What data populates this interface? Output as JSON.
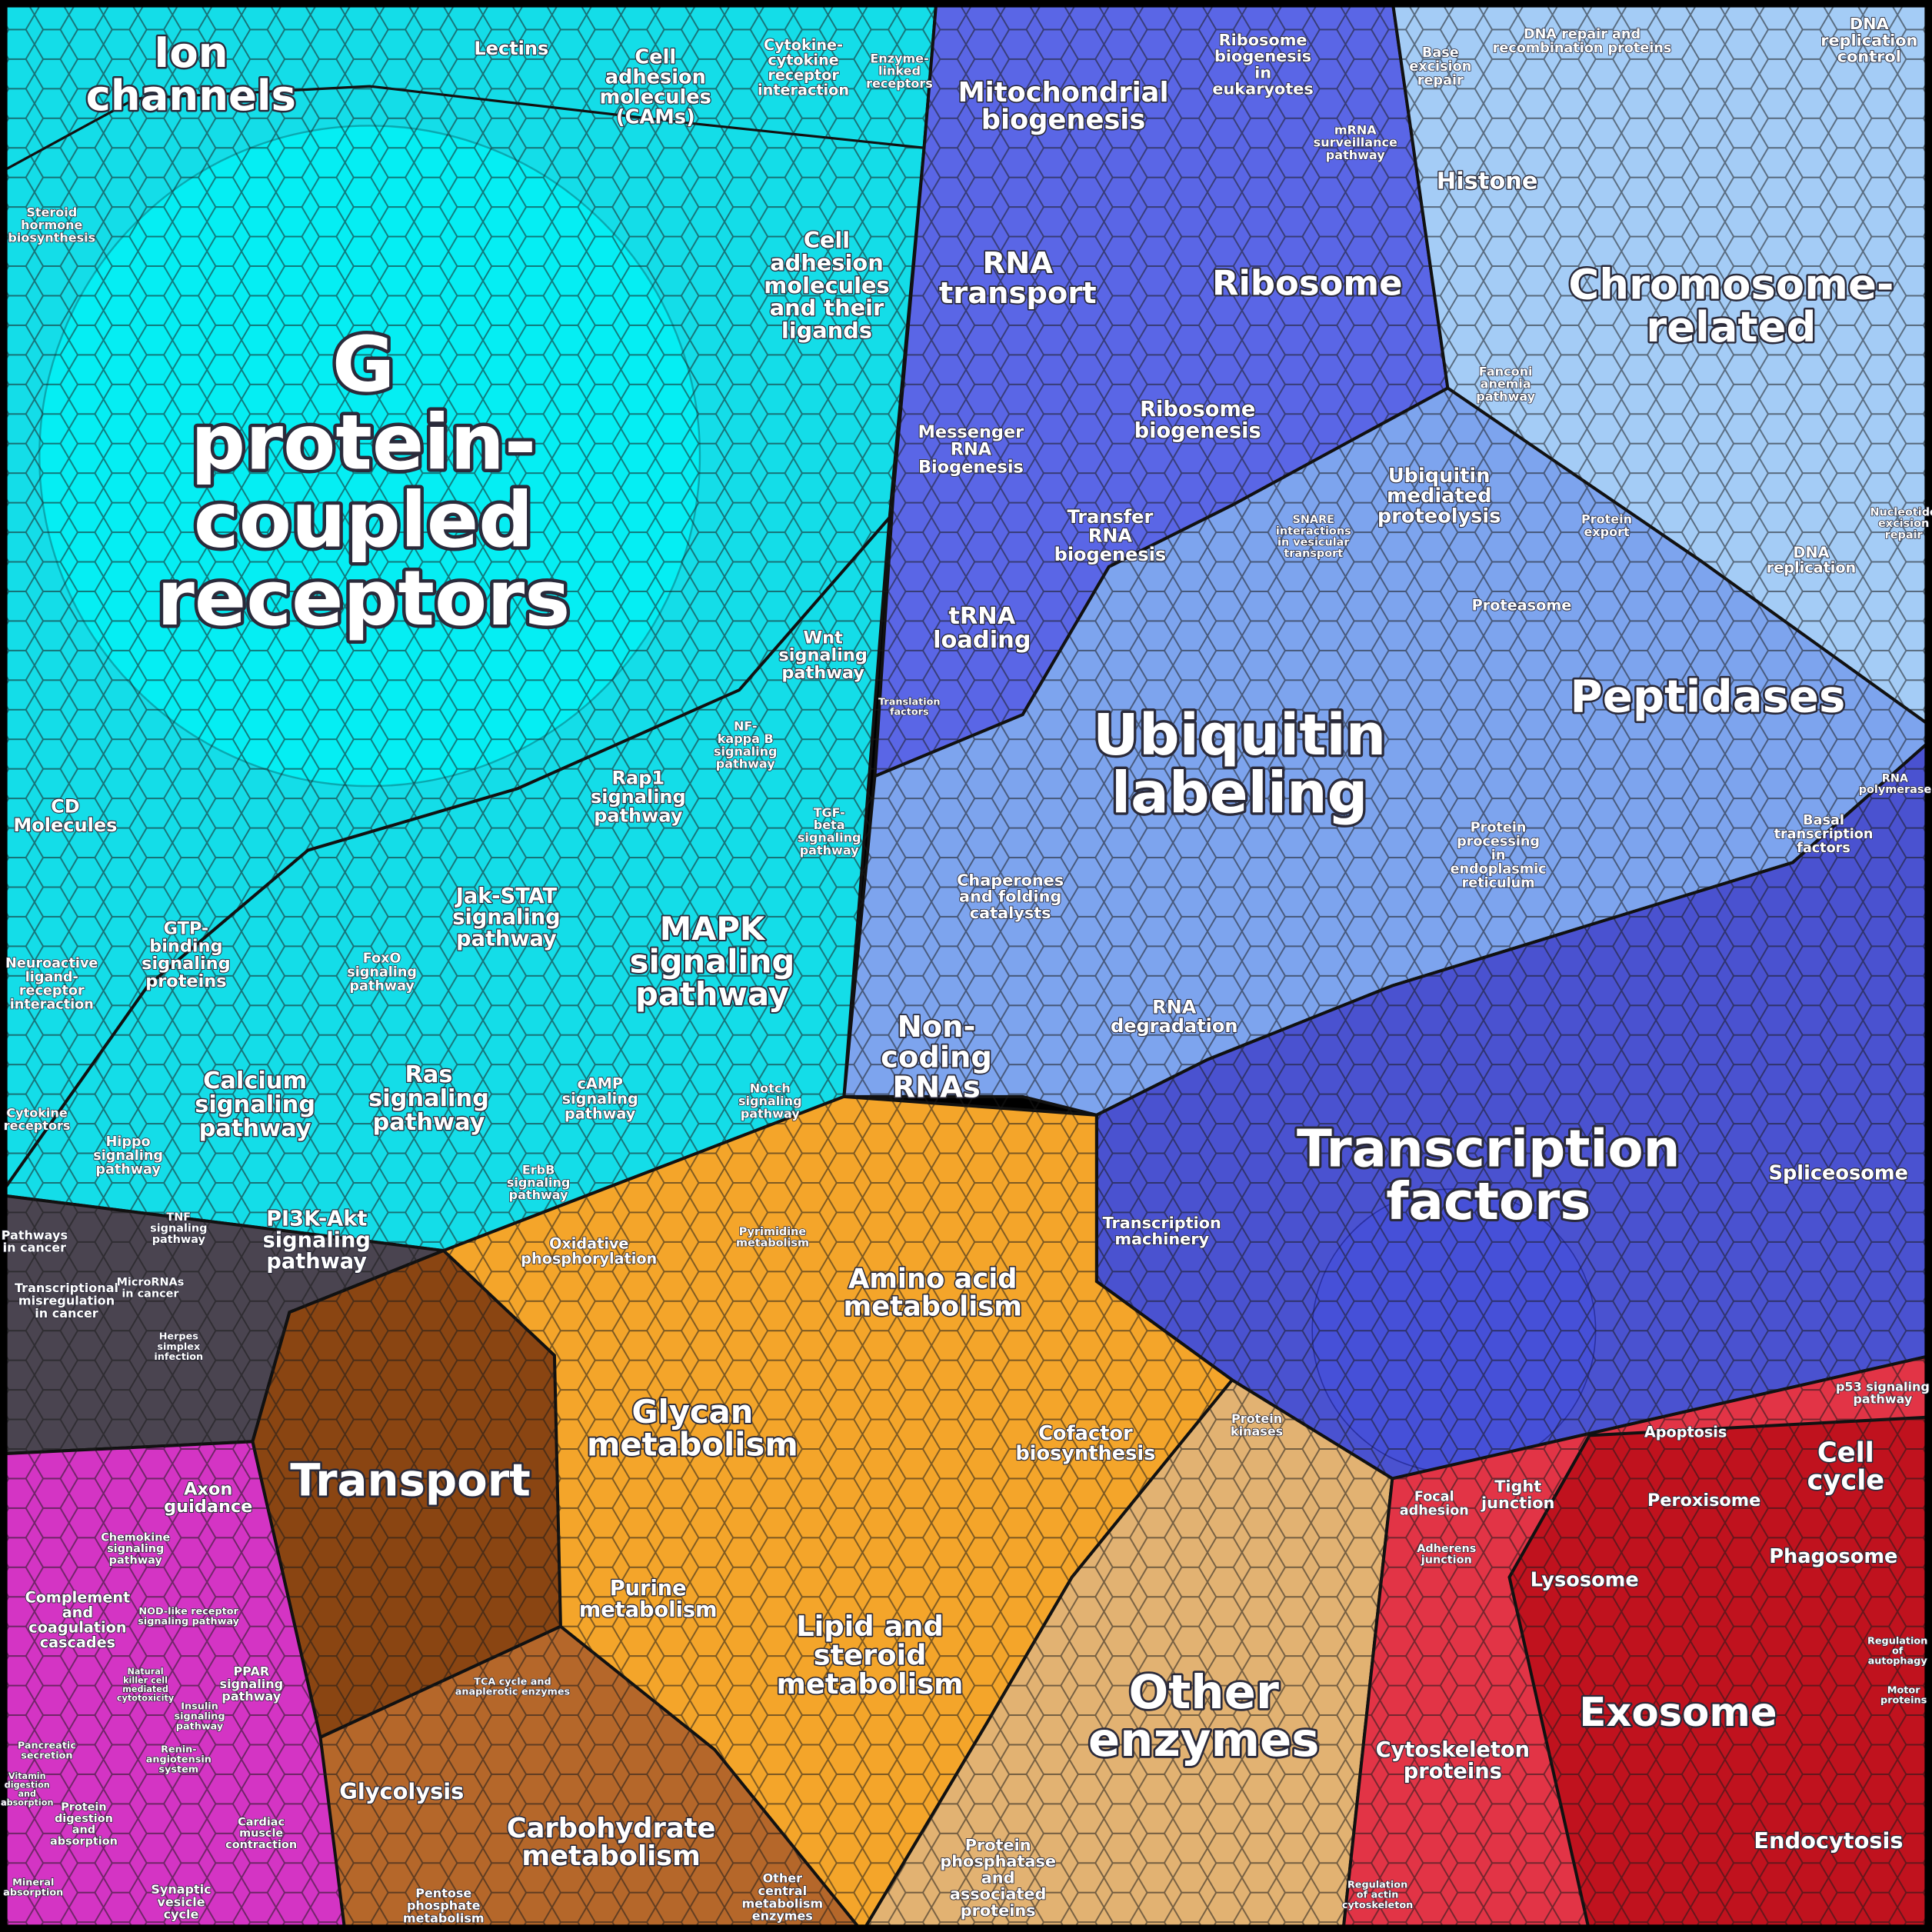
{
  "labels": [
    {
      "lines": [
        "G",
        "protein-",
        "coupled",
        "receptors"
      ]
    },
    {
      "lines": [
        "Ion",
        "channels"
      ]
    },
    {
      "lines": [
        "Lectins"
      ]
    },
    {
      "lines": [
        "Cell",
        "adhesion",
        "molecules",
        "(CAMs)"
      ]
    },
    {
      "lines": [
        "Cytokine-",
        "cytokine",
        "receptor",
        "interaction"
      ]
    },
    {
      "lines": [
        "Enzyme-",
        "linked",
        "receptors"
      ]
    },
    {
      "lines": [
        "Steroid",
        "hormone",
        "biosynthesis"
      ]
    },
    {
      "lines": [
        "Cell",
        "adhesion",
        "molecules",
        "and their",
        "ligands"
      ]
    },
    {
      "lines": [
        "Wnt",
        "signaling",
        "pathway"
      ]
    },
    {
      "lines": [
        "NF-",
        "kappa B",
        "signaling",
        "pathway"
      ]
    },
    {
      "lines": [
        "Rap1",
        "signaling",
        "pathway"
      ]
    },
    {
      "lines": [
        "TGF-",
        "beta",
        "signaling",
        "pathway"
      ]
    },
    {
      "lines": [
        "CD",
        "Molecules"
      ]
    },
    {
      "lines": [
        "MAPK",
        "signaling",
        "pathway"
      ]
    },
    {
      "lines": [
        "Jak-STAT",
        "signaling",
        "pathway"
      ]
    },
    {
      "lines": [
        "GTP-",
        "binding",
        "signaling",
        "proteins"
      ]
    },
    {
      "lines": [
        "Neuroactive",
        "ligand-",
        "receptor",
        "interaction"
      ]
    },
    {
      "lines": [
        "FoxO",
        "signaling",
        "pathway"
      ]
    },
    {
      "lines": [
        "Calcium",
        "signaling",
        "pathway"
      ]
    },
    {
      "lines": [
        "Ras",
        "signaling",
        "pathway"
      ]
    },
    {
      "lines": [
        "cAMP",
        "signaling",
        "pathway"
      ]
    },
    {
      "lines": [
        "Notch",
        "signaling",
        "pathway"
      ]
    },
    {
      "lines": [
        "Hippo",
        "signaling",
        "pathway"
      ]
    },
    {
      "lines": [
        "Cytokine",
        "receptors"
      ]
    },
    {
      "lines": [
        "ErbB",
        "signaling",
        "pathway"
      ]
    },
    {
      "lines": [
        "PI3K-Akt",
        "signaling",
        "pathway"
      ]
    },
    {
      "lines": [
        "TNF",
        "signaling",
        "pathway"
      ]
    },
    {
      "lines": [
        "Pathways",
        "in cancer"
      ]
    },
    {
      "lines": [
        "Transcriptional",
        "misregulation",
        "in cancer"
      ]
    },
    {
      "lines": [
        "MicroRNAs",
        "in cancer"
      ]
    },
    {
      "lines": [
        "Herpes",
        "simplex",
        "infection"
      ]
    },
    {
      "lines": [
        "Mitochondrial",
        "biogenesis"
      ]
    },
    {
      "lines": [
        "Ribosome",
        "biogenesis",
        "in",
        "eukaryotes"
      ]
    },
    {
      "lines": [
        "DNA repair and",
        "recombination proteins"
      ]
    },
    {
      "lines": [
        "DNA",
        "replication",
        "control"
      ]
    },
    {
      "lines": [
        "Base",
        "excision",
        "repair"
      ]
    },
    {
      "lines": [
        "mRNA",
        "surveillance",
        "pathway"
      ]
    },
    {
      "lines": [
        "Histone"
      ]
    },
    {
      "lines": [
        "RNA",
        "transport"
      ]
    },
    {
      "lines": [
        "Ribosome"
      ]
    },
    {
      "lines": [
        "Chromosome-",
        "related"
      ]
    },
    {
      "lines": [
        "Fanconi",
        "anemia",
        "pathway"
      ]
    },
    {
      "lines": [
        "Ribosome",
        "biogenesis"
      ]
    },
    {
      "lines": [
        "Messenger",
        "RNA",
        "Biogenesis"
      ]
    },
    {
      "lines": [
        "Ubiquitin",
        "mediated",
        "proteolysis"
      ]
    },
    {
      "lines": [
        "Transfer",
        "RNA",
        "biogenesis"
      ]
    },
    {
      "lines": [
        "SNARE",
        "interactions",
        "in vesicular",
        "transport"
      ]
    },
    {
      "lines": [
        "Protein",
        "export"
      ]
    },
    {
      "lines": [
        "DNA",
        "replication"
      ]
    },
    {
      "lines": [
        "Nucleotide",
        "excision",
        "repair"
      ]
    },
    {
      "lines": [
        "Proteasome"
      ]
    },
    {
      "lines": [
        "tRNA",
        "loading"
      ]
    },
    {
      "lines": [
        "Peptidases"
      ]
    },
    {
      "lines": [
        "Ubiquitin",
        "labeling"
      ]
    },
    {
      "lines": [
        "Translation",
        "factors"
      ]
    },
    {
      "lines": [
        "RNA",
        "polymerase"
      ]
    },
    {
      "lines": [
        "Basal",
        "transcription",
        "factors"
      ]
    },
    {
      "lines": [
        "Protein",
        "processing",
        "in",
        "endoplasmic",
        "reticulum"
      ]
    },
    {
      "lines": [
        "Chaperones",
        "and folding",
        "catalysts"
      ]
    },
    {
      "lines": [
        "RNA",
        "degradation"
      ]
    },
    {
      "lines": [
        "Non-",
        "coding",
        "RNAs"
      ]
    },
    {
      "lines": [
        "Transcription",
        "factors"
      ]
    },
    {
      "lines": [
        "Spliceosome"
      ]
    },
    {
      "lines": [
        "Transcription",
        "machinery"
      ]
    },
    {
      "lines": [
        "Oxidative",
        "phosphorylation"
      ]
    },
    {
      "lines": [
        "Pyrimidine",
        "metabolism"
      ]
    },
    {
      "lines": [
        "Amino acid",
        "metabolism"
      ]
    },
    {
      "lines": [
        "Glycan",
        "metabolism"
      ]
    },
    {
      "lines": [
        "Cofactor",
        "biosynthesis"
      ]
    },
    {
      "lines": [
        "Protein",
        "kinases"
      ]
    },
    {
      "lines": [
        "Transport"
      ]
    },
    {
      "lines": [
        "Purine",
        "metabolism"
      ]
    },
    {
      "lines": [
        "Lipid and",
        "steroid",
        "metabolism"
      ]
    },
    {
      "lines": [
        "TCA cycle and",
        "anaplerotic enzymes"
      ]
    },
    {
      "lines": [
        "Other",
        "enzymes"
      ]
    },
    {
      "lines": [
        "Glycolysis"
      ]
    },
    {
      "lines": [
        "Carbohydrate",
        "metabolism"
      ]
    },
    {
      "lines": [
        "Protein",
        "phosphatase",
        "and",
        "associated",
        "proteins"
      ]
    },
    {
      "lines": [
        "Other",
        "central",
        "metabolism",
        "enzymes"
      ]
    },
    {
      "lines": [
        "Pentose",
        "phosphate",
        "metabolism"
      ]
    },
    {
      "lines": [
        "p53 signaling",
        "pathway"
      ]
    },
    {
      "lines": [
        "Apoptosis"
      ]
    },
    {
      "lines": [
        "Cell",
        "cycle"
      ]
    },
    {
      "lines": [
        "Focal",
        "adhesion"
      ]
    },
    {
      "lines": [
        "Tight",
        "junction"
      ]
    },
    {
      "lines": [
        "Peroxisome"
      ]
    },
    {
      "lines": [
        "Adherens",
        "junction"
      ]
    },
    {
      "lines": [
        "Lysosome"
      ]
    },
    {
      "lines": [
        "Phagosome"
      ]
    },
    {
      "lines": [
        "Regulation",
        "of",
        "autophagy"
      ]
    },
    {
      "lines": [
        "Motor",
        "proteins"
      ]
    },
    {
      "lines": [
        "Exosome"
      ]
    },
    {
      "lines": [
        "Cytoskeleton",
        "proteins"
      ]
    },
    {
      "lines": [
        "Endocytosis"
      ]
    },
    {
      "lines": [
        "Regulation",
        "of actin",
        "cytoskeleton"
      ]
    },
    {
      "lines": [
        "Axon",
        "guidance"
      ]
    },
    {
      "lines": [
        "Chemokine",
        "signaling",
        "pathway"
      ]
    },
    {
      "lines": [
        "Complement",
        "and",
        "coagulation",
        "cascades"
      ]
    },
    {
      "lines": [
        "NOD-like receptor",
        "signaling pathway"
      ]
    },
    {
      "lines": [
        "PPAR",
        "signaling",
        "pathway"
      ]
    },
    {
      "lines": [
        "Natural",
        "killer cell",
        "mediated",
        "cytotoxicity"
      ]
    },
    {
      "lines": [
        "Insulin",
        "signaling",
        "pathway"
      ]
    },
    {
      "lines": [
        "Pancreatic",
        "secretion"
      ]
    },
    {
      "lines": [
        "Renin-",
        "angiotensin",
        "system"
      ]
    },
    {
      "lines": [
        "Protein",
        "digestion",
        "and",
        "absorption"
      ]
    },
    {
      "lines": [
        "Vitamin",
        "digestion",
        "and",
        "absorption"
      ]
    },
    {
      "lines": [
        "Cardiac",
        "muscle",
        "contraction"
      ]
    },
    {
      "lines": [
        "Mineral",
        "absorption"
      ]
    },
    {
      "lines": [
        "Synaptic",
        "vesicle",
        "cycle"
      ]
    }
  ]
}
